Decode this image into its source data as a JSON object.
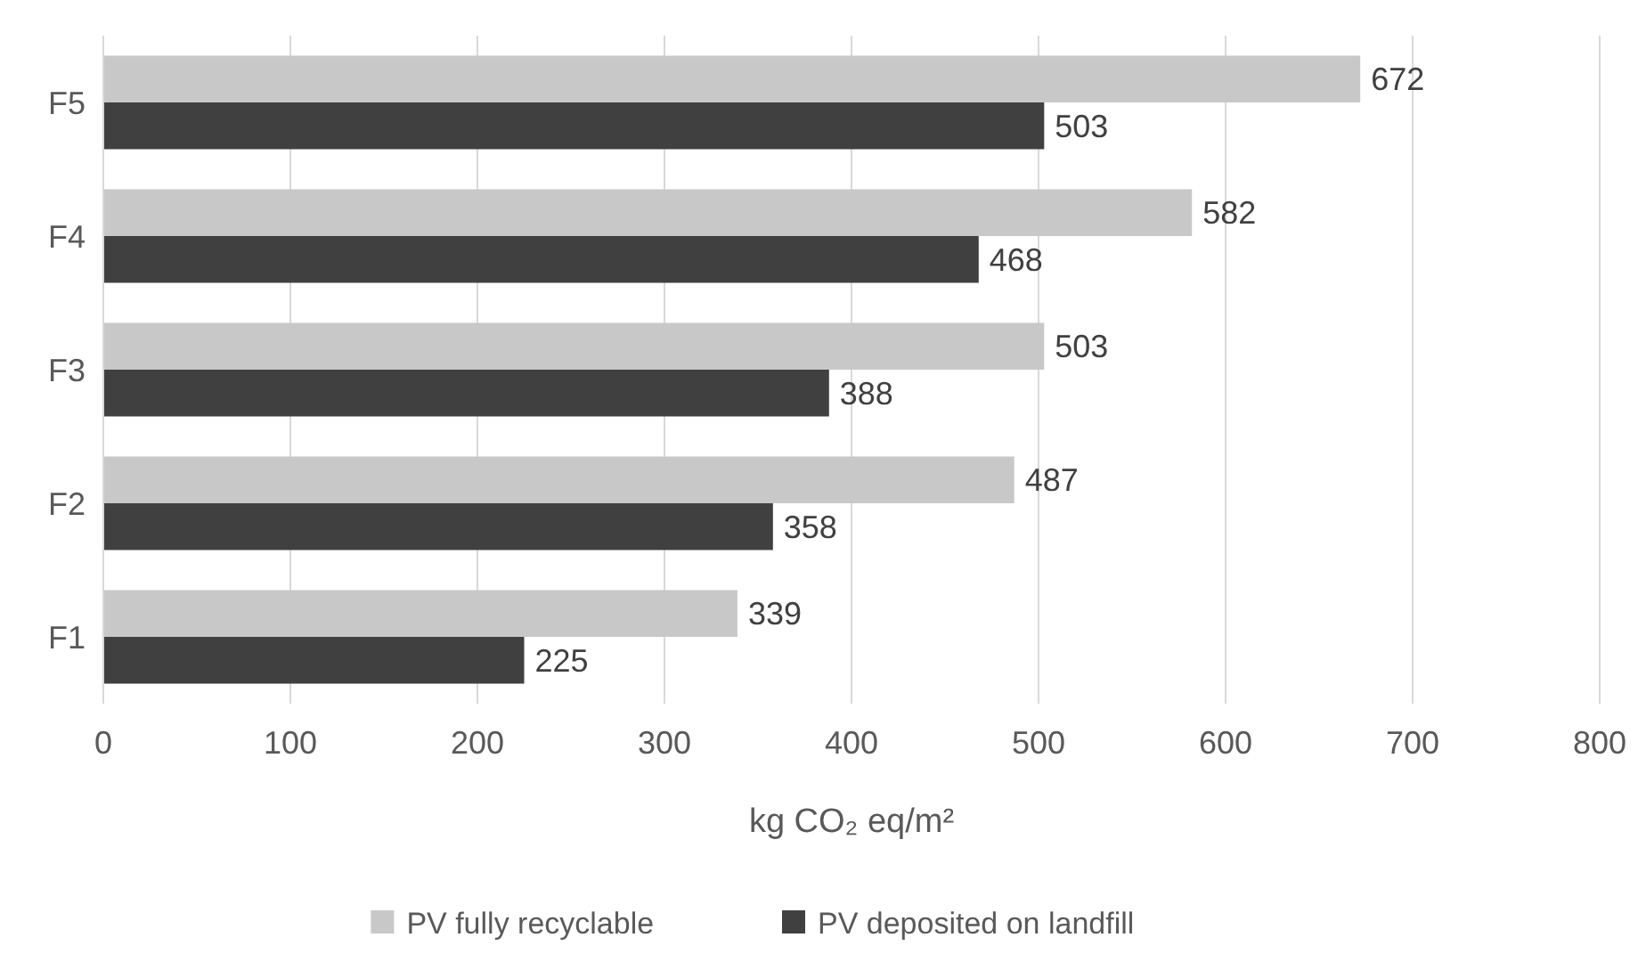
{
  "chart_data": {
    "type": "bar",
    "orientation": "horizontal",
    "categories": [
      "F5",
      "F4",
      "F3",
      "F2",
      "F1"
    ],
    "series": [
      {
        "name": "PV fully recyclable",
        "color": "#c8c8c8",
        "values": [
          672,
          582,
          503,
          487,
          339
        ]
      },
      {
        "name": "PV deposited on landfill",
        "color": "#404040",
        "values": [
          503,
          468,
          388,
          358,
          225
        ]
      }
    ],
    "xlim": [
      0,
      800
    ],
    "xticks": [
      0,
      100,
      200,
      300,
      400,
      500,
      600,
      700,
      800
    ],
    "xlabel": "kg CO₂ eq/m²",
    "grid": "x",
    "legend": "bottom",
    "data_labels": true
  }
}
